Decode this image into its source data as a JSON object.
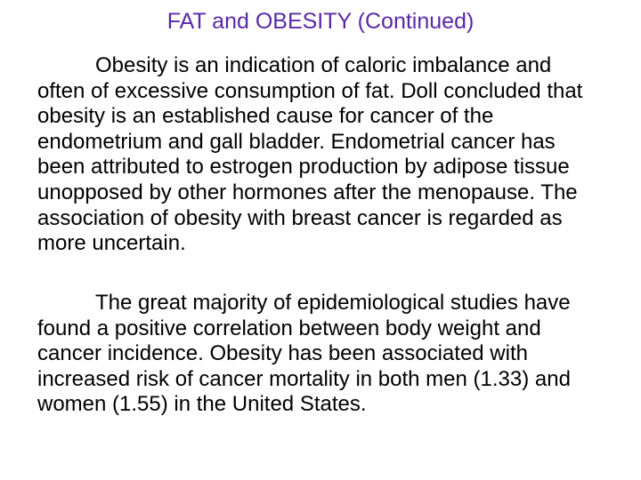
{
  "slide": {
    "title": "FAT and OBESITY (Continued)",
    "title_color": "#5B28A8",
    "text_color": "#000000",
    "background_color": "#FFFFFF",
    "paragraphs": [
      {
        "lines": [
          "Obesity is an indication of caloric imbalance and",
          "often of excessive consumption of fat. Doll concluded that",
          "obesity is an established cause for cancer of the",
          "endometrium and gall bladder. Endometrial cancer has",
          "been attributed to estrogen production by adipose tissue",
          "unopposed by other hormones after the menopause. The",
          "association of obesity with breast cancer is regarded as",
          "more uncertain."
        ]
      },
      {
        "lines": [
          "The great majority of epidemiological studies have",
          "found a positive correlation between body weight and",
          "cancer incidence. Obesity has been associated with",
          "increased risk of cancer mortality in both men (1.33) and",
          "women (1.55) in the United States."
        ]
      }
    ]
  }
}
